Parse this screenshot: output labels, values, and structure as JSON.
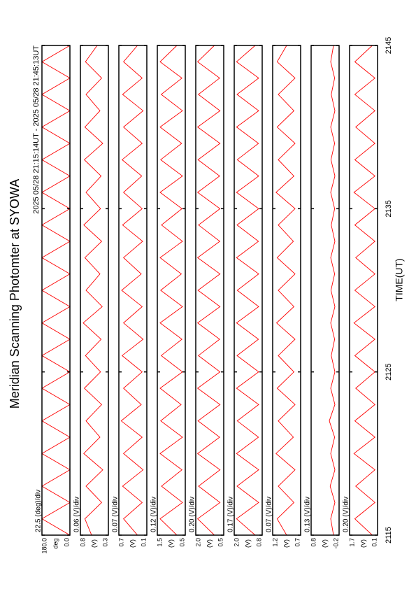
{
  "chart_data": [
    {
      "type": "line",
      "title": "Meridian Scanning Photomter at SYOWA",
      "subtitle": "2025 05/28 21:15:14UT - 2025 05/28 21:45:13UT",
      "scale_label": "22.5 (deg)/div",
      "y_unit": "deg",
      "color": "#ff0000",
      "xlim": [
        2115,
        2145
      ],
      "ylim": [
        0,
        180
      ],
      "yticks": [
        {
          "value": 0,
          "label": "0.0"
        },
        {
          "value": 180,
          "label": "180.0"
        }
      ],
      "x": [
        2115,
        2116,
        2117,
        2118,
        2119,
        2120,
        2121,
        2122,
        2123,
        2124,
        2125,
        2126,
        2127,
        2128,
        2129,
        2130,
        2131,
        2132,
        2133,
        2134,
        2135,
        2136,
        2137,
        2138,
        2139,
        2140,
        2141,
        2142,
        2143,
        2144,
        2145
      ],
      "values": [
        0,
        180,
        0,
        180,
        0,
        180,
        0,
        180,
        0,
        180,
        0,
        180,
        0,
        180,
        0,
        180,
        0,
        180,
        0,
        180,
        0,
        180,
        0,
        180,
        0,
        180,
        0,
        180,
        0,
        180,
        0
      ]
    },
    {
      "type": "line",
      "scale_label": "0.06 (V)/div",
      "y_unit": "(V)",
      "color": "#ff0000",
      "xlim": [
        2115,
        2145
      ],
      "ylim": [
        0.3,
        0.8
      ],
      "yticks": [
        0.3,
        0.8
      ],
      "x": [
        2115,
        2116,
        2117,
        2118,
        2119,
        2120,
        2121,
        2122,
        2123,
        2124,
        2125,
        2126,
        2127,
        2128,
        2129,
        2130,
        2131,
        2132,
        2133,
        2134,
        2135,
        2136,
        2137,
        2138,
        2139,
        2140,
        2141,
        2142,
        2143,
        2144,
        2145
      ],
      "values": [
        0.6,
        0.72,
        0.42,
        0.7,
        0.4,
        0.74,
        0.45,
        0.7,
        0.42,
        0.73,
        0.44,
        0.71,
        0.43,
        0.75,
        0.41,
        0.7,
        0.45,
        0.72,
        0.42,
        0.74,
        0.44,
        0.7,
        0.43,
        0.73,
        0.4,
        0.72,
        0.45,
        0.7,
        0.42,
        0.71,
        0.5
      ]
    },
    {
      "type": "line",
      "scale_label": "0.07 (V)/div",
      "y_unit": "(V)",
      "color": "#ff0000",
      "xlim": [
        2115,
        2145
      ],
      "ylim": [
        0.1,
        0.7
      ],
      "yticks": [
        0.1,
        0.7
      ],
      "x": [
        2115,
        2116,
        2117,
        2118,
        2119,
        2120,
        2121,
        2122,
        2123,
        2124,
        2125,
        2126,
        2127,
        2128,
        2129,
        2130,
        2131,
        2132,
        2133,
        2134,
        2135,
        2136,
        2137,
        2138,
        2139,
        2140,
        2141,
        2142,
        2143,
        2144,
        2145
      ],
      "values": [
        0.3,
        0.6,
        0.2,
        0.62,
        0.18,
        0.6,
        0.2,
        0.65,
        0.22,
        0.6,
        0.2,
        0.63,
        0.18,
        0.6,
        0.2,
        0.64,
        0.22,
        0.6,
        0.19,
        0.62,
        0.2,
        0.6,
        0.21,
        0.63,
        0.2,
        0.6,
        0.18,
        0.62,
        0.2,
        0.6,
        0.3
      ]
    },
    {
      "type": "line",
      "scale_label": "0.12 (V)/div",
      "y_unit": "(V)",
      "color": "#ff0000",
      "xlim": [
        2115,
        2145
      ],
      "ylim": [
        0.5,
        1.5
      ],
      "yticks": [
        0.5,
        1.5
      ],
      "x": [
        2115,
        2116,
        2117,
        2118,
        2119,
        2120,
        2121,
        2122,
        2123,
        2124,
        2125,
        2126,
        2127,
        2128,
        2129,
        2130,
        2131,
        2132,
        2133,
        2134,
        2135,
        2136,
        2137,
        2138,
        2139,
        2140,
        2141,
        2142,
        2143,
        2144,
        2145
      ],
      "values": [
        0.8,
        1.4,
        0.6,
        1.35,
        0.62,
        1.4,
        0.6,
        1.38,
        0.65,
        1.4,
        0.6,
        1.36,
        0.62,
        1.4,
        0.6,
        1.38,
        0.64,
        1.4,
        0.6,
        1.35,
        0.62,
        1.4,
        0.6,
        1.38,
        0.63,
        1.4,
        0.6,
        1.36,
        0.62,
        1.4,
        0.8
      ]
    },
    {
      "type": "line",
      "scale_label": "0.20 (V)/div",
      "y_unit": "(V)",
      "color": "#ff0000",
      "xlim": [
        2115,
        2145
      ],
      "ylim": [
        0.5,
        2.0
      ],
      "yticks": [
        0.5,
        {
          "value": 2,
          "label": "2.0"
        }
      ],
      "x": [
        2115,
        2116,
        2117,
        2118,
        2119,
        2120,
        2121,
        2122,
        2123,
        2124,
        2125,
        2126,
        2127,
        2128,
        2129,
        2130,
        2131,
        2132,
        2133,
        2134,
        2135,
        2136,
        2137,
        2138,
        2139,
        2140,
        2141,
        2142,
        2143,
        2144,
        2145
      ],
      "values": [
        1.0,
        1.9,
        0.7,
        1.85,
        0.7,
        1.9,
        0.72,
        1.88,
        0.7,
        1.9,
        0.7,
        1.86,
        0.72,
        1.9,
        0.7,
        1.88,
        0.7,
        1.9,
        0.71,
        1.85,
        0.7,
        1.9,
        0.72,
        1.88,
        0.7,
        1.9,
        0.7,
        1.86,
        0.72,
        1.9,
        1.0
      ]
    },
    {
      "type": "line",
      "scale_label": "0.17 (V)/div",
      "y_unit": "(V)",
      "color": "#ff0000",
      "xlim": [
        2115,
        2145
      ],
      "ylim": [
        0.8,
        2.0
      ],
      "yticks": [
        0.8,
        {
          "value": 2,
          "label": "2.0"
        }
      ],
      "x": [
        2115,
        2116,
        2117,
        2118,
        2119,
        2120,
        2121,
        2122,
        2123,
        2124,
        2125,
        2126,
        2127,
        2128,
        2129,
        2130,
        2131,
        2132,
        2133,
        2134,
        2135,
        2136,
        2137,
        2138,
        2139,
        2140,
        2141,
        2142,
        2143,
        2144,
        2145
      ],
      "values": [
        1.1,
        1.9,
        0.95,
        1.88,
        0.95,
        1.9,
        0.96,
        1.87,
        0.95,
        1.9,
        0.95,
        1.88,
        0.96,
        1.9,
        0.95,
        1.87,
        0.95,
        1.9,
        0.96,
        1.88,
        0.95,
        1.9,
        0.95,
        1.87,
        0.96,
        1.9,
        0.95,
        1.88,
        0.95,
        1.9,
        1.1
      ]
    },
    {
      "type": "line",
      "scale_label": "0.07 (V)/div",
      "y_unit": "(V)",
      "color": "#ff0000",
      "xlim": [
        2115,
        2145
      ],
      "ylim": [
        0.7,
        1.2
      ],
      "yticks": [
        0.7,
        1.2
      ],
      "x": [
        2115,
        2116,
        2117,
        2118,
        2119,
        2120,
        2121,
        2122,
        2123,
        2124,
        2125,
        2126,
        2127,
        2128,
        2129,
        2130,
        2131,
        2132,
        2133,
        2134,
        2135,
        2136,
        2137,
        2138,
        2139,
        2140,
        2141,
        2142,
        2143,
        2144,
        2145
      ],
      "values": [
        0.95,
        1.12,
        0.82,
        1.1,
        0.8,
        1.14,
        0.83,
        1.1,
        0.8,
        1.12,
        0.82,
        1.1,
        0.8,
        1.13,
        0.82,
        1.1,
        0.8,
        1.12,
        0.83,
        1.1,
        0.8,
        1.14,
        0.82,
        1.1,
        0.8,
        1.12,
        0.82,
        1.1,
        0.8,
        1.12,
        0.95
      ]
    },
    {
      "type": "line",
      "scale_label": "0.13 (V)/div",
      "y_unit": "(V)",
      "color": "#ff0000",
      "xlim": [
        2115,
        2145
      ],
      "ylim": [
        -0.2,
        0.8
      ],
      "yticks": [
        -0.2,
        0.8
      ],
      "x": [
        2115,
        2116,
        2117,
        2118,
        2119,
        2120,
        2121,
        2122,
        2123,
        2124,
        2125,
        2126,
        2127,
        2128,
        2129,
        2130,
        2131,
        2132,
        2133,
        2134,
        2135,
        2136,
        2137,
        2138,
        2139,
        2140,
        2141,
        2142,
        2143,
        2144,
        2145
      ],
      "values": [
        0.0,
        0.1,
        -0.05,
        0.12,
        -0.05,
        0.1,
        -0.04,
        0.15,
        -0.05,
        0.1,
        -0.05,
        0.08,
        -0.04,
        0.1,
        -0.05,
        0.09,
        -0.04,
        0.1,
        -0.05,
        0.08,
        -0.04,
        0.1,
        -0.05,
        0.09,
        -0.04,
        0.1,
        -0.05,
        0.08,
        -0.04,
        0.1,
        0.0
      ]
    },
    {
      "type": "line",
      "scale_label": "0.20 (V)/div",
      "y_unit": "(V)",
      "color": "#ff0000",
      "xlim": [
        2115,
        2145
      ],
      "ylim": [
        0.1,
        1.7
      ],
      "yticks": [
        0.1,
        1.7
      ],
      "xticks": [
        2115,
        2125,
        2135,
        2145
      ],
      "xlabel": "TIME(UT)",
      "x": [
        2115,
        2116,
        2117,
        2118,
        2119,
        2120,
        2121,
        2122,
        2123,
        2124,
        2125,
        2126,
        2127,
        2128,
        2129,
        2130,
        2131,
        2132,
        2133,
        2134,
        2135,
        2136,
        2137,
        2138,
        2139,
        2140,
        2141,
        2142,
        2143,
        2144,
        2145
      ],
      "values": [
        0.4,
        1.4,
        0.25,
        1.35,
        0.25,
        1.45,
        0.25,
        1.4,
        0.25,
        1.35,
        0.25,
        1.4,
        0.25,
        1.45,
        0.25,
        1.4,
        0.25,
        1.35,
        0.25,
        1.4,
        0.25,
        1.45,
        0.25,
        1.4,
        0.25,
        1.35,
        0.25,
        1.4,
        0.25,
        1.4,
        0.4
      ]
    }
  ]
}
